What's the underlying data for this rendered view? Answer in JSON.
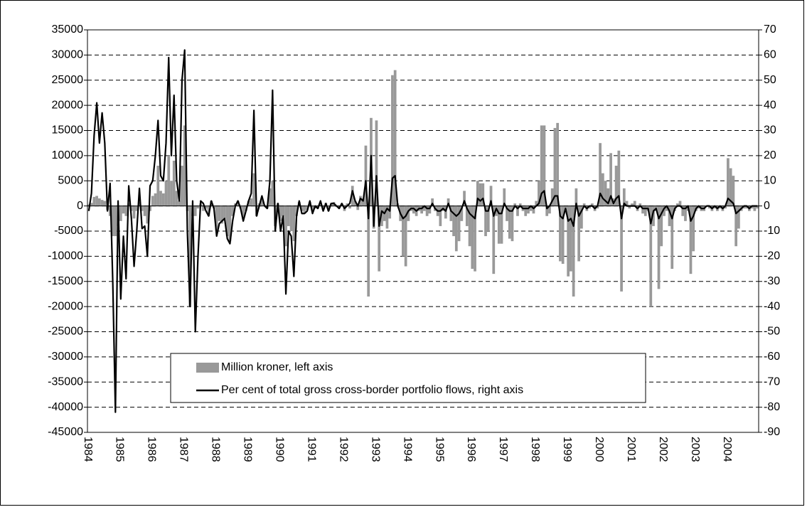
{
  "chart_data": {
    "type": "combo",
    "categories": [
      "1984",
      null,
      null,
      null,
      null,
      null,
      null,
      null,
      null,
      null,
      null,
      null,
      "1985",
      null,
      null,
      null,
      null,
      null,
      null,
      null,
      null,
      null,
      null,
      null,
      "1986",
      null,
      null,
      null,
      null,
      null,
      null,
      null,
      null,
      null,
      null,
      null,
      "1987",
      null,
      null,
      null,
      null,
      null,
      null,
      null,
      null,
      null,
      null,
      null,
      "1988",
      null,
      null,
      null,
      null,
      null,
      null,
      null,
      null,
      null,
      null,
      null,
      "1989",
      null,
      null,
      null,
      null,
      null,
      null,
      null,
      null,
      null,
      null,
      null,
      "1990",
      null,
      null,
      null,
      null,
      null,
      null,
      null,
      null,
      null,
      null,
      null,
      "1991",
      null,
      null,
      null,
      null,
      null,
      null,
      null,
      null,
      null,
      null,
      null,
      "1992",
      null,
      null,
      null,
      null,
      null,
      null,
      null,
      null,
      null,
      null,
      null,
      "1993",
      null,
      null,
      null,
      null,
      null,
      null,
      null,
      null,
      null,
      null,
      null,
      "1994",
      null,
      null,
      null,
      null,
      null,
      null,
      null,
      null,
      null,
      null,
      null,
      "1995",
      null,
      null,
      null,
      null,
      null,
      null,
      null,
      null,
      null,
      null,
      null,
      "1996",
      null,
      null,
      null,
      null,
      null,
      null,
      null,
      null,
      null,
      null,
      null,
      "1997",
      null,
      null,
      null,
      null,
      null,
      null,
      null,
      null,
      null,
      null,
      null,
      "1998",
      null,
      null,
      null,
      null,
      null,
      null,
      null,
      null,
      null,
      null,
      null,
      "1999",
      null,
      null,
      null,
      null,
      null,
      null,
      null,
      null,
      null,
      null,
      null,
      "2000",
      null,
      null,
      null,
      null,
      null,
      null,
      null,
      null,
      null,
      null,
      null,
      "2001",
      null,
      null,
      null,
      null,
      null,
      null,
      null,
      null,
      null,
      null,
      null,
      "2002",
      null,
      null,
      null,
      null,
      null,
      null,
      null,
      null,
      null,
      null,
      null,
      "2003",
      null,
      null,
      null,
      null,
      null,
      null,
      null,
      null,
      null,
      null,
      null,
      "2004",
      null,
      null,
      null,
      null,
      null,
      null,
      null,
      null,
      null,
      null,
      null
    ],
    "series": [
      {
        "name": "Million kroner, left axis",
        "type": "bar",
        "color": "#999999",
        "values": [
          300,
          600,
          1800,
          2000,
          1500,
          1200,
          1000,
          -800,
          -2000,
          -6000,
          -6000,
          -4000,
          -3000,
          -1500,
          -2000,
          500,
          -1000,
          -2500,
          -1000,
          800,
          -1000,
          -2000,
          -3500,
          -1000,
          2000,
          2500,
          8000,
          3000,
          2500,
          5000,
          10000,
          5000,
          9000,
          3000,
          1000,
          8000,
          16000,
          -1000,
          -20000,
          -2000,
          -2000,
          -500,
          500,
          -1000,
          -500,
          -2000,
          1000,
          -500,
          -5000,
          -3000,
          -3500,
          -2500,
          -6000,
          -7000,
          -2000,
          500,
          1000,
          -500,
          -2500,
          -1000,
          1000,
          1500,
          6500,
          -2000,
          500,
          1500,
          200,
          -500,
          3500,
          5000,
          -4000,
          500,
          -3000,
          -2000,
          -8000,
          -4000,
          -5000,
          -7000,
          -2000,
          800,
          -1000,
          -1500,
          -800,
          800,
          -1000,
          -500,
          -500,
          500,
          -800,
          600,
          -1000,
          500,
          800,
          -200,
          -500,
          500,
          -1000,
          500,
          -500,
          4000,
          1000,
          -800,
          2000,
          1500,
          12000,
          -18000,
          17500,
          -4500,
          17000,
          -13000,
          -4000,
          -3000,
          -4500,
          -2500,
          26000,
          27000,
          500,
          -3000,
          -10000,
          -12000,
          -3000,
          -1000,
          -1500,
          -2000,
          -1000,
          -1500,
          -1000,
          -2000,
          -1500,
          1500,
          -1000,
          -2000,
          -4000,
          -1000,
          -2500,
          1500,
          -3000,
          -6000,
          -9000,
          -7000,
          -3000,
          3000,
          -4000,
          -8000,
          -12500,
          -13000,
          5000,
          4500,
          4500,
          -6000,
          -5000,
          4000,
          -13500,
          -2000,
          -7500,
          -7500,
          3500,
          -3000,
          -6500,
          -7000,
          500,
          -2000,
          500,
          -1000,
          -2000,
          -1500,
          -1000,
          -1500,
          1000,
          5000,
          16000,
          16000,
          -2000,
          -1500,
          3500,
          15500,
          16500,
          -11000,
          -11500,
          -1000,
          -14000,
          -13000,
          -18000,
          3500,
          -11000,
          -4500,
          500,
          -1000,
          -500,
          500,
          -1000,
          -500,
          12500,
          6500,
          5000,
          3500,
          10500,
          1500,
          8000,
          11000,
          -17000,
          3500,
          1000,
          -500,
          500,
          1000,
          -1000,
          500,
          -1500,
          -2000,
          -1000,
          -20000,
          -4000,
          -1000,
          -16500,
          -8000,
          -2000,
          -1000,
          -4000,
          -12500,
          -1000,
          500,
          1000,
          -2000,
          -3000,
          -1000,
          -13500,
          -9000,
          -1000,
          -500,
          -1000,
          -1000,
          0,
          -500,
          -1000,
          -500,
          -1000,
          -500,
          -1000,
          -500,
          9500,
          7500,
          6000,
          -8000,
          -4500,
          -1000,
          -500,
          -500,
          -1000,
          -500,
          -1000,
          -500
        ]
      },
      {
        "name": "Per cent of total gross cross-border portfolio flows, right axis",
        "type": "line",
        "axis": "y2",
        "color": "#000000",
        "values": [
          -2,
          5,
          28,
          41,
          25,
          37,
          25,
          -2,
          9,
          -30,
          -82,
          2,
          -37,
          -12,
          -29,
          8,
          -5,
          -24,
          -10,
          7,
          -9,
          -8,
          -20,
          8,
          10,
          20,
          34,
          12,
          10,
          25,
          59,
          20,
          44,
          10,
          2,
          50,
          62,
          -10,
          -40,
          2,
          -50,
          -20,
          2,
          1,
          -2,
          -4,
          2,
          -1,
          -12,
          -7,
          -6,
          -5,
          -13,
          -15,
          -6,
          0,
          2,
          -1,
          -6,
          -2,
          2,
          5,
          38,
          -4,
          0,
          4,
          0,
          -1,
          10,
          46,
          -10,
          1,
          -10,
          -4,
          -35,
          -10,
          -12,
          -28,
          -4,
          2,
          -3,
          -3,
          -2,
          2,
          -3,
          0,
          -1,
          2,
          -2,
          1,
          -2,
          1,
          1,
          0,
          -1,
          1,
          -1,
          0,
          1,
          6,
          2,
          0,
          3,
          2,
          10,
          -5,
          20,
          -8,
          12,
          -8,
          -2,
          -3,
          -1,
          -2,
          11,
          12,
          0,
          -3,
          -5,
          -4,
          -2,
          -1,
          -1,
          -2,
          -1,
          -1,
          0,
          -1,
          -1,
          1,
          -1,
          -2,
          -2,
          -1,
          -2,
          1,
          -2,
          -3,
          -4,
          -3,
          -1,
          2,
          -1,
          -3,
          -4,
          -5,
          3,
          2,
          3,
          -2,
          -2,
          2,
          -4,
          -1,
          -3,
          -3,
          1,
          -1,
          -2,
          -2,
          0,
          -1,
          0,
          -1,
          -1,
          -1,
          0,
          -1,
          0,
          1,
          5,
          6,
          -1,
          0,
          2,
          4,
          4,
          -4,
          -5,
          -1,
          -6,
          -5,
          -8,
          1,
          -4,
          -2,
          0,
          -1,
          0,
          0,
          -1,
          0,
          5,
          3,
          2,
          1,
          4,
          1,
          3,
          4,
          -5,
          1,
          0,
          0,
          0,
          0,
          -1,
          0,
          -1,
          -1,
          -1,
          -7,
          -2,
          -1,
          -5,
          -3,
          -1,
          0,
          -2,
          -5,
          -1,
          0,
          0,
          -1,
          -1,
          0,
          -6,
          -4,
          -1,
          0,
          -1,
          -1,
          0,
          0,
          -1,
          0,
          -1,
          0,
          -1,
          0,
          3,
          2,
          1,
          -3,
          -2,
          -1,
          0,
          0,
          -1,
          0,
          0,
          0
        ]
      }
    ],
    "ylim": [
      -45000,
      35000
    ],
    "yticks": [
      -45000,
      -40000,
      -35000,
      -30000,
      -25000,
      -20000,
      -15000,
      -10000,
      -5000,
      0,
      5000,
      10000,
      15000,
      20000,
      25000,
      30000,
      35000
    ],
    "y2lim": [
      -90,
      70
    ],
    "y2ticks": [
      -90,
      -80,
      -70,
      -60,
      -50,
      -40,
      -30,
      -20,
      -10,
      0,
      10,
      20,
      30,
      40,
      50,
      60,
      70
    ],
    "grid": true
  }
}
